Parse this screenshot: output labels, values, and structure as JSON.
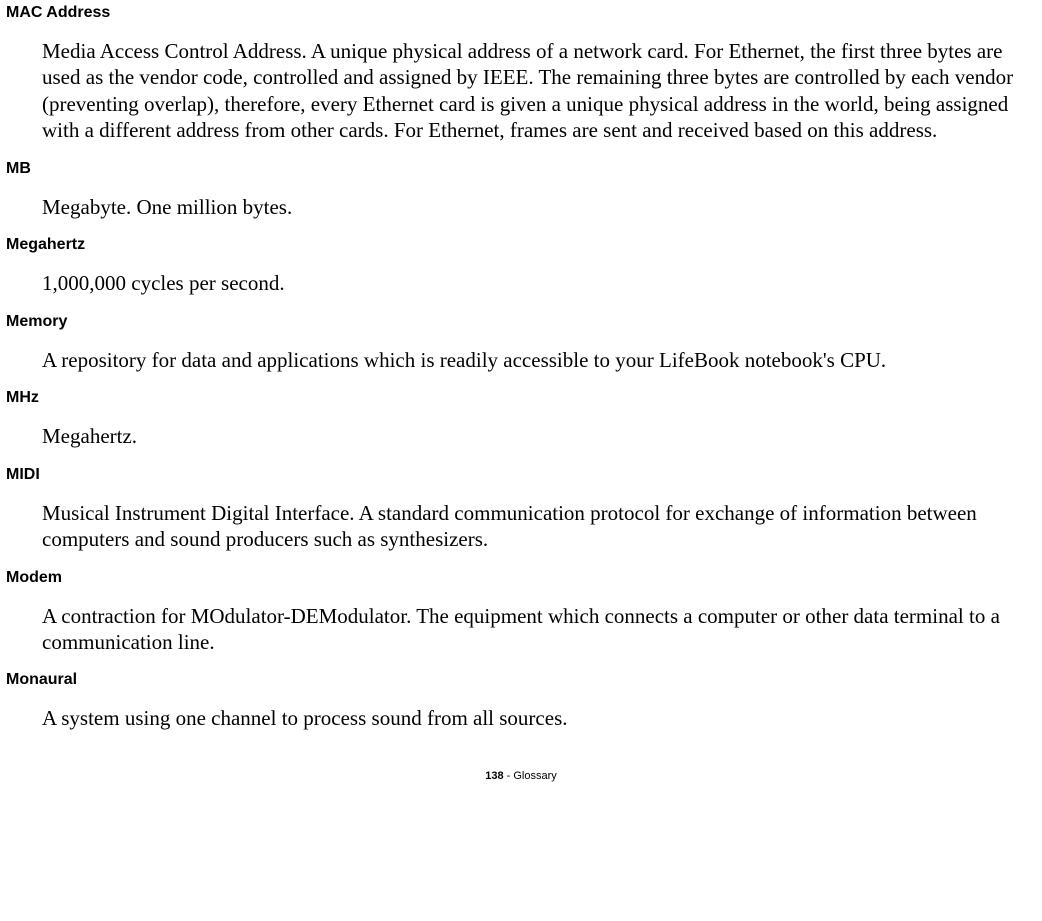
{
  "entries": [
    {
      "term": "MAC Address",
      "definition": "Media Access Control Address. A unique physical address of a network card. For Ethernet, the first three bytes are used as the vendor code, controlled and assigned by IEEE. The remaining three bytes are controlled by each vendor (preventing overlap), therefore, every Ethernet card is given a unique physical address in the world, being assigned with a different address from other cards. For Ethernet, frames are sent and received based on this address."
    },
    {
      "term": "MB",
      "definition": "Megabyte. One million bytes."
    },
    {
      "term": "Megahertz",
      "definition": "1,000,000 cycles per second."
    },
    {
      "term": "Memory",
      "definition": "A repository for data and applications which is readily accessible to your LifeBook notebook's CPU."
    },
    {
      "term": "MHz",
      "definition": "Megahertz."
    },
    {
      "term": "MIDI",
      "definition": "Musical Instrument Digital Interface. A standard communication protocol for exchange of information between computers and sound producers such as synthesizers."
    },
    {
      "term": "Modem",
      "definition": "A contraction for MOdulator-DEModulator. The equipment which connects a computer or other data terminal to a communication line."
    },
    {
      "term": "Monaural",
      "definition": "A system using one channel to process sound from all sources."
    }
  ],
  "footer": {
    "page": "138",
    "section": "Glossary"
  }
}
